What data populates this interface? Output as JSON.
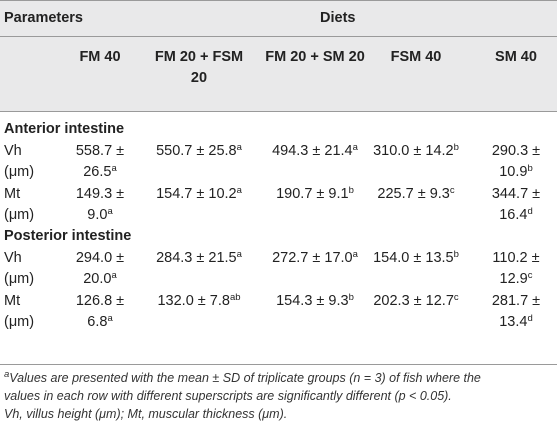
{
  "header": {
    "parameters": "Parameters",
    "diets": "Diets",
    "columns": [
      "FM 40",
      "FM 20 + FSM",
      "20",
      "FM 20 + SM 20",
      "FSM 40",
      "SM 40"
    ]
  },
  "sections": [
    {
      "title": "Anterior intestine",
      "rows": [
        {
          "label1": "Vh",
          "label2": "(μm)",
          "fm40_1": "558.7 ±",
          "fm40_2": "26.5",
          "fm40_sup": "a",
          "fm20fsm": "550.7 ± 25.8",
          "fm20fsm_sup": "a",
          "fm20sm": "494.3 ± 21.4",
          "fm20sm_sup": "a",
          "fsm40": "310.0 ± 14.2",
          "fsm40_sup": "b",
          "sm40_1": "290.3 ±",
          "sm40_2": "10.9",
          "sm40_sup": "b"
        },
        {
          "label1": "Mt",
          "label2": "(μm)",
          "fm40_1": "149.3 ±",
          "fm40_2": "9.0",
          "fm40_sup": "a",
          "fm20fsm": "154.7 ± 10.2",
          "fm20fsm_sup": "a",
          "fm20sm": "190.7 ± 9.1",
          "fm20sm_sup": "b",
          "fsm40": "225.7 ± 9.3",
          "fsm40_sup": "c",
          "sm40_1": "344.7 ±",
          "sm40_2": "16.4",
          "sm40_sup": "d"
        }
      ]
    },
    {
      "title": "Posterior intestine",
      "rows": [
        {
          "label1": "Vh",
          "label2": "(μm)",
          "fm40_1": "294.0 ±",
          "fm40_2": "20.0",
          "fm40_sup": "a",
          "fm20fsm": "284.3 ± 21.5",
          "fm20fsm_sup": "a",
          "fm20sm": "272.7 ± 17.0",
          "fm20sm_sup": "a",
          "fsm40": "154.0 ± 13.5",
          "fsm40_sup": "b",
          "sm40_1": "110.2 ±",
          "sm40_2": "12.9",
          "sm40_sup": "c"
        },
        {
          "label1": "Mt",
          "label2": "(μm)",
          "fm40_1": "126.8 ±",
          "fm40_2": "6.8",
          "fm40_sup": "a",
          "fm20fsm": "132.0 ± 7.8",
          "fm20fsm_sup": "ab",
          "fm20sm": "154.3 ± 9.3",
          "fm20sm_sup": "b",
          "fsm40": "202.3 ± 12.7",
          "fsm40_sup": "c",
          "sm40_1": "281.7 ±",
          "sm40_2": "13.4",
          "sm40_sup": "d"
        }
      ]
    }
  ],
  "footnote": {
    "sup": "a",
    "line1": "Values are presented with the mean ± SD of triplicate groups (n = 3) of fish where the",
    "line2": "values in each row with different superscripts are significantly different (p < 0.05).",
    "line3": "Vh, villus height (μm); Mt, muscular thickness (μm)."
  }
}
